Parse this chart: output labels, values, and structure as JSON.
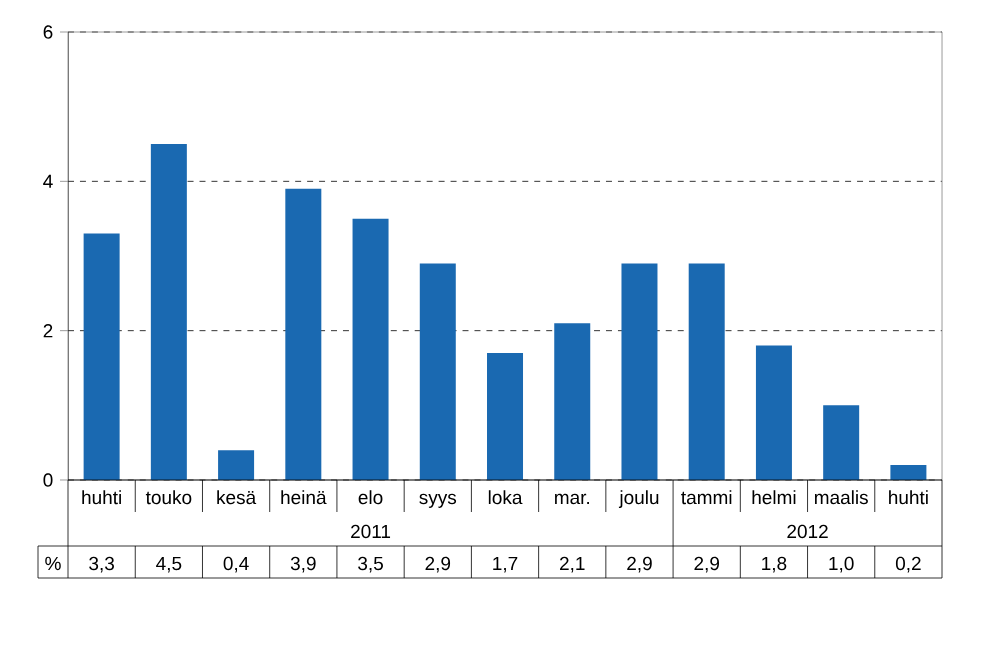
{
  "chart_data": {
    "type": "bar",
    "categories": [
      "huhti",
      "touko",
      "kesä",
      "heinä",
      "elo",
      "syys",
      "loka",
      "mar.",
      "joulu",
      "tammi",
      "helmi",
      "maalis",
      "huhti"
    ],
    "values": [
      3.3,
      4.5,
      0.4,
      3.9,
      3.5,
      2.9,
      1.7,
      2.1,
      2.9,
      2.9,
      1.8,
      1.0,
      0.2
    ],
    "value_labels": [
      "3,3",
      "4,5",
      "0,4",
      "3,9",
      "3,5",
      "2,9",
      "1,7",
      "2,1",
      "2,9",
      "2,9",
      "1,8",
      "1,0",
      "0,2"
    ],
    "color": "#1a69b1",
    "ylim": [
      0,
      6
    ],
    "yticks": [
      0,
      2,
      4,
      6
    ],
    "grid": "y",
    "annotations": [
      "2011",
      "2012",
      "%"
    ]
  }
}
